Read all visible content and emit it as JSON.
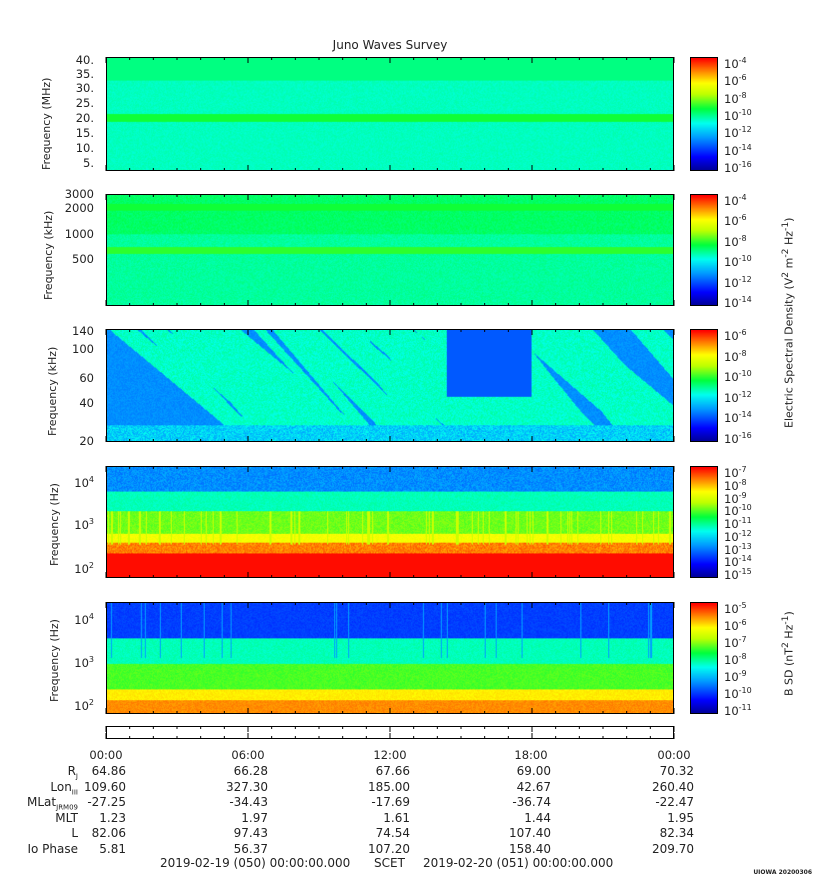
{
  "title": "Juno Waves Survey",
  "panels": [
    {
      "id": "p1",
      "ylabel": "Frequency (MHz)",
      "yticks": [
        "40.",
        "35.",
        "30.",
        "25.",
        "20.",
        "15.",
        "10.",
        "5."
      ],
      "cbar_ticks": [
        "-4",
        "-6",
        "-8",
        "-10",
        "-12",
        "-14",
        "-16"
      ]
    },
    {
      "id": "p2",
      "ylabel": "Frequency (kHz)",
      "yticks": [
        "3000",
        "2000",
        "1000",
        "500"
      ],
      "cbar_ticks": [
        "-4",
        "-6",
        "-8",
        "-10",
        "-12",
        "-14"
      ]
    },
    {
      "id": "p3",
      "ylabel": "Frequency (kHz)",
      "yticks": [
        "140",
        "100",
        "60",
        "40",
        "20"
      ],
      "cbar_ticks": [
        "-6",
        "-8",
        "-10",
        "-12",
        "-14",
        "-16"
      ]
    },
    {
      "id": "p4",
      "ylabel": "Frequency (Hz)",
      "yticks": [
        "4",
        "3",
        "2"
      ],
      "cbar_ticks": [
        "-7",
        "-8",
        "-9",
        "-10",
        "-11",
        "-12",
        "-13",
        "-14",
        "-15"
      ]
    },
    {
      "id": "p5",
      "ylabel": "Frequency (Hz)",
      "yticks": [
        "4",
        "3",
        "2"
      ],
      "cbar_ticks": [
        "-5",
        "-6",
        "-7",
        "-8",
        "-9",
        "-10",
        "-11"
      ]
    }
  ],
  "cbar_base": "10",
  "e_label": "Electric Spectral Density (V",
  "e_label_sup1": "2",
  "e_label_mid": " m",
  "e_label_sup2": "-2",
  "e_label_mid2": " Hz",
  "e_label_sup3": "-1",
  "e_label_end": ")",
  "b_label": "B SD (nT",
  "b_label_sup1": "2",
  "b_label_mid": " Hz",
  "b_label_sup2": "-1",
  "b_label_end": ")",
  "time_ticks": [
    "00:00",
    "06:00",
    "12:00",
    "18:00",
    "00:00"
  ],
  "ephemeris": [
    {
      "label": "R",
      "sub": "J",
      "values": [
        "64.86",
        "66.28",
        "67.66",
        "69.00",
        "70.32"
      ]
    },
    {
      "label": "Lon",
      "sub": "III",
      "values": [
        "109.60",
        "327.30",
        "185.00",
        "42.67",
        "260.40"
      ]
    },
    {
      "label": "MLat",
      "sub": "JRM09",
      "values": [
        "-27.25",
        "-34.43",
        "-17.69",
        "-36.74",
        "-22.47"
      ]
    },
    {
      "label": "MLT",
      "sub": "",
      "values": [
        "1.23",
        "1.97",
        "1.61",
        "1.44",
        "1.95"
      ]
    },
    {
      "label": "L",
      "sub": "",
      "values": [
        "82.06",
        "97.43",
        "74.54",
        "107.40",
        "82.34"
      ]
    },
    {
      "label": "Io Phase",
      "sub": "",
      "values": [
        "5.81",
        "56.37",
        "107.20",
        "158.40",
        "209.70"
      ]
    }
  ],
  "footer_start": "2019-02-19 (050) 00:00:00.000",
  "footer_mid": "SCET",
  "footer_end": "2019-02-20 (051) 00:00:00.000",
  "stamp": "UIOWA 20200306",
  "colors": {
    "high": "#ff0000",
    "mid": "#00ff00",
    "low": "#0000ff",
    "frame": "#000000"
  }
}
